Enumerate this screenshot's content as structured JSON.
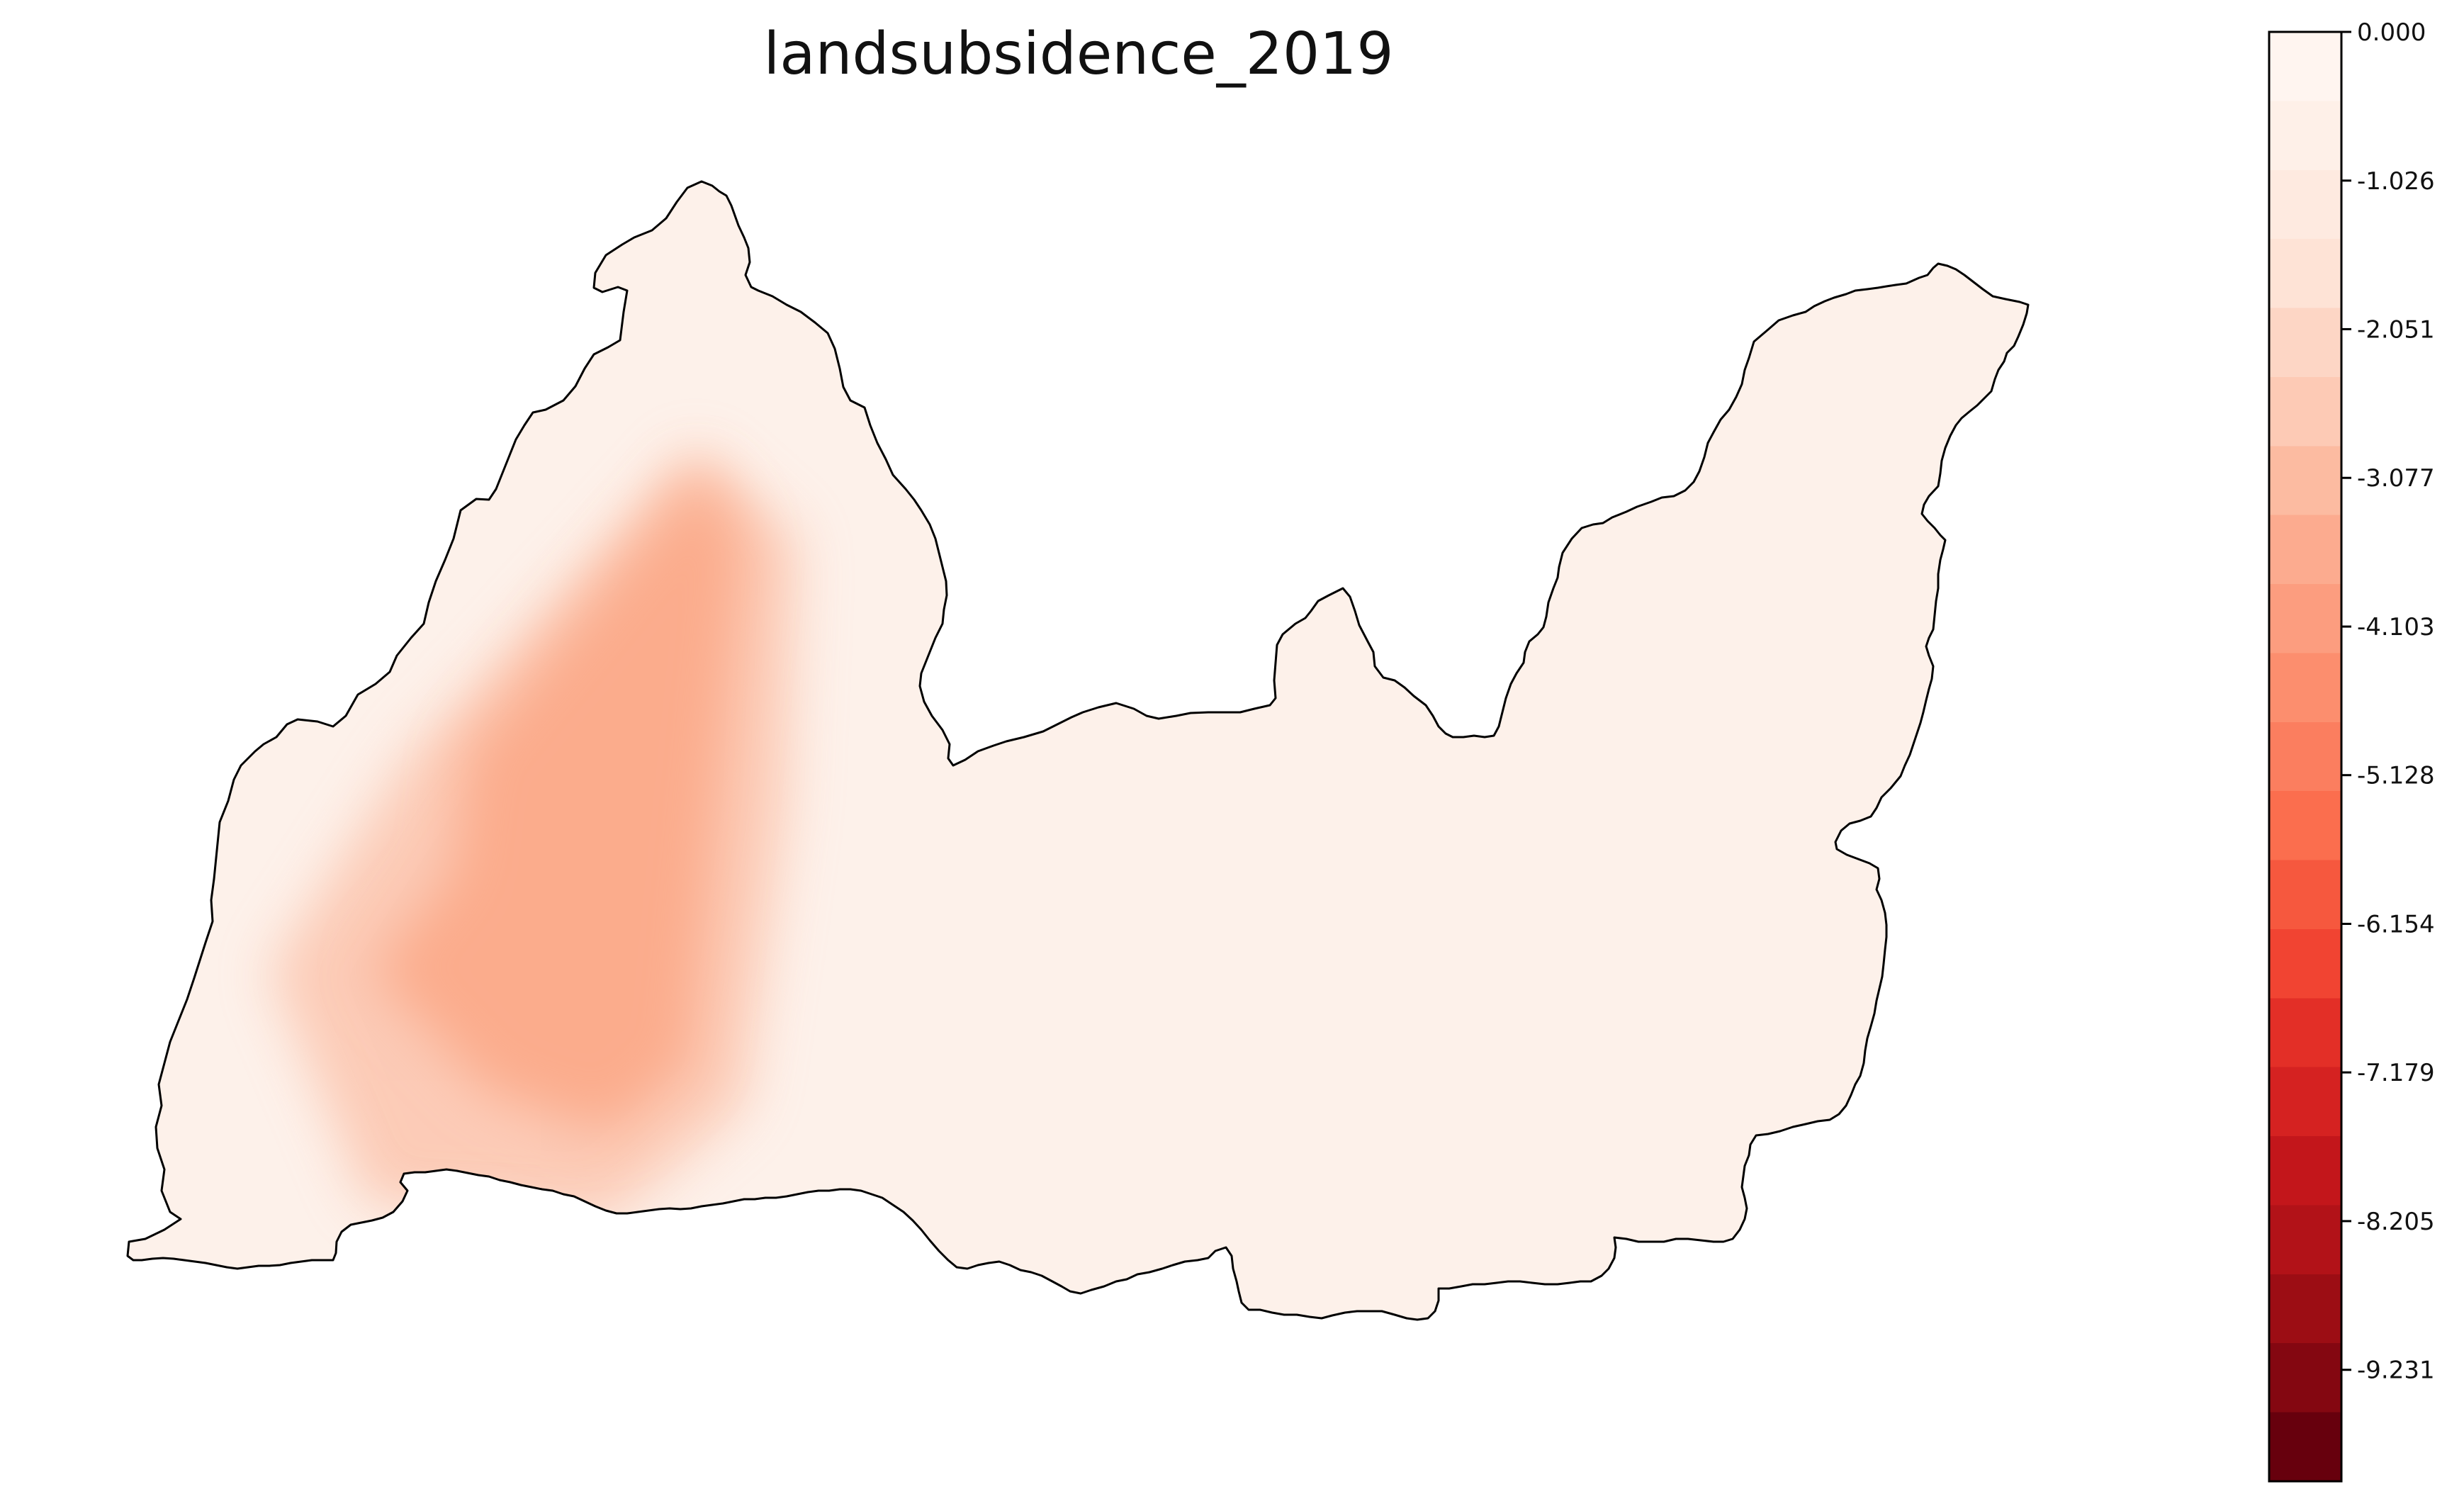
{
  "figure": {
    "title": "landsubsidence_2019"
  },
  "map": {
    "region": "study-area",
    "base_color": "#fdf1ea",
    "outline_color": "#000000",
    "anomaly_color": "#fbac8c",
    "anomaly_peak_value": -2.6,
    "background_value": -0.25
  },
  "colorbar": {
    "colormap": "Reds",
    "min": -10.0,
    "max": 0.0,
    "ticks": [
      "0.000",
      "-1.026",
      "-2.051",
      "-3.077",
      "-4.103",
      "-5.128",
      "-6.154",
      "-7.179",
      "-8.205",
      "-9.231"
    ],
    "tick_values": [
      0.0,
      -1.026,
      -2.051,
      -3.077,
      -4.103,
      -5.128,
      -6.154,
      -7.179,
      -8.205,
      -9.231
    ],
    "bands": [
      "#fff5f0",
      "#fef0e8",
      "#feeae0",
      "#fee3d6",
      "#fdd6c5",
      "#fdcab5",
      "#fcbba1",
      "#fcab8f",
      "#fc9d7f",
      "#fc8e6e",
      "#fb7e5f",
      "#fb6e4e",
      "#f6583e",
      "#f14432",
      "#e32f27",
      "#d52221",
      "#c3161b",
      "#b21218",
      "#9c0d14",
      "#840711",
      "#67000d"
    ]
  }
}
